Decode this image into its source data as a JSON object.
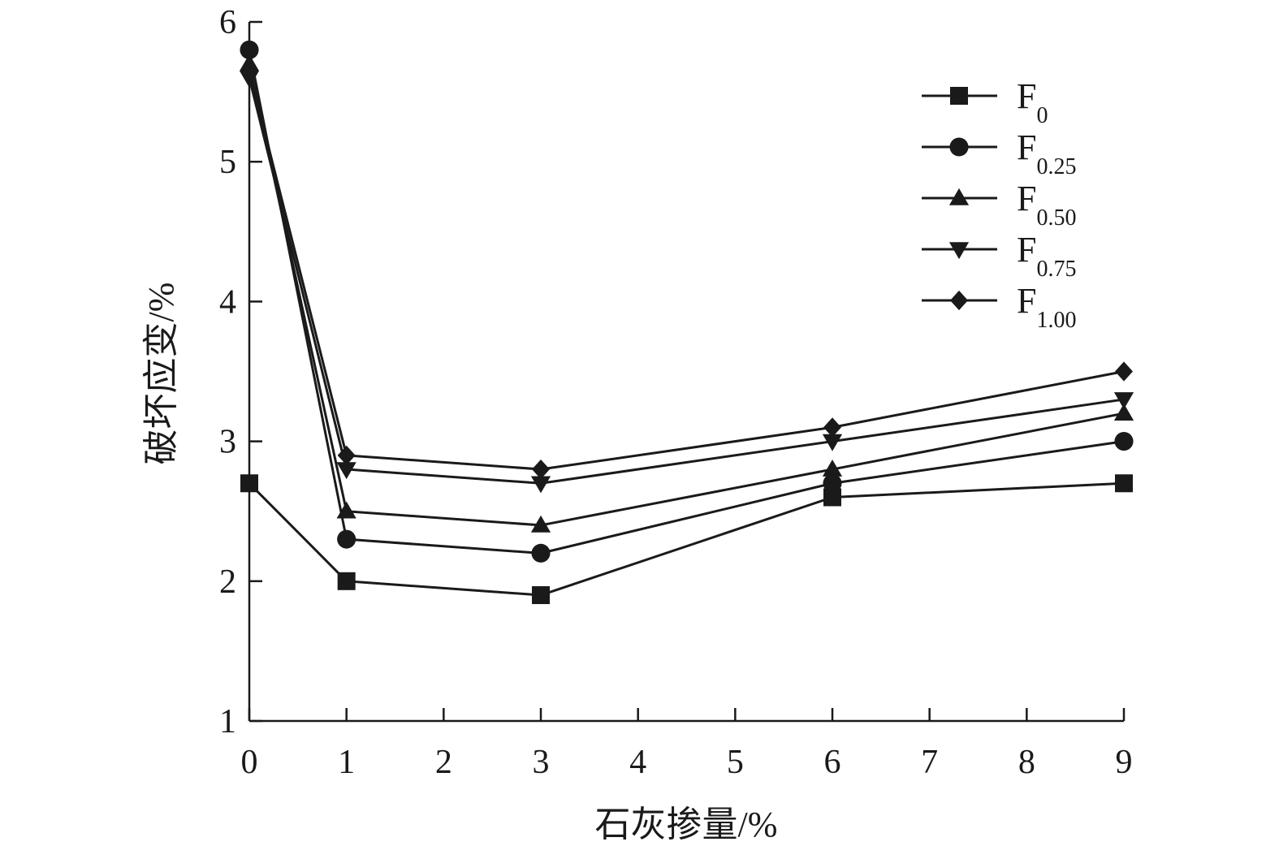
{
  "chart_data": {
    "type": "line",
    "title": "",
    "xlabel": "石灰掺量/%",
    "ylabel": "破坏应变/%",
    "xlim": [
      0,
      9
    ],
    "ylim": [
      1,
      6
    ],
    "x_ticks": [
      "0",
      "1",
      "2",
      "3",
      "4",
      "5",
      "6",
      "7",
      "8",
      "9"
    ],
    "y_ticks": [
      "1",
      "2",
      "3",
      "4",
      "5",
      "6"
    ],
    "grid": false,
    "legend_position": "top-right",
    "color": "#1a1a1a",
    "x": [
      0,
      1,
      3,
      6,
      9
    ],
    "series": [
      {
        "name": "F",
        "subscript": "0",
        "marker": "square",
        "values": [
          2.7,
          2.0,
          1.9,
          2.6,
          2.7
        ]
      },
      {
        "name": "F",
        "subscript": "0.25",
        "marker": "circle",
        "values": [
          5.8,
          2.3,
          2.2,
          2.7,
          3.0
        ]
      },
      {
        "name": "F",
        "subscript": "0.50",
        "marker": "triangle-up",
        "values": [
          5.7,
          2.5,
          2.4,
          2.8,
          3.2
        ]
      },
      {
        "name": "F",
        "subscript": "0.75",
        "marker": "triangle-down",
        "values": [
          5.6,
          2.8,
          2.7,
          3.0,
          3.3
        ]
      },
      {
        "name": "F",
        "subscript": "1.00",
        "marker": "diamond",
        "values": [
          5.65,
          2.9,
          2.8,
          3.1,
          3.5
        ]
      }
    ]
  }
}
